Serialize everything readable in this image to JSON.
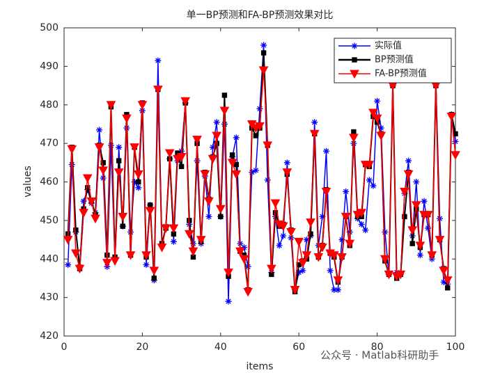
{
  "chart_data": {
    "type": "line",
    "title": "单一BP预测和FA-BP预测效果对比",
    "xlabel": "items",
    "ylabel": "values",
    "watermark": "公众号 · Matlab科研助手",
    "x": [
      1,
      2,
      3,
      4,
      5,
      6,
      7,
      8,
      9,
      10,
      11,
      12,
      13,
      14,
      15,
      16,
      17,
      18,
      19,
      20,
      21,
      22,
      23,
      24,
      25,
      26,
      27,
      28,
      29,
      30,
      31,
      32,
      33,
      34,
      35,
      36,
      37,
      38,
      39,
      40,
      41,
      42,
      43,
      44,
      45,
      46,
      47,
      48,
      49,
      50,
      51,
      52,
      53,
      54,
      55,
      56,
      57,
      58,
      59,
      60,
      61,
      62,
      63,
      64,
      65,
      66,
      67,
      68,
      69,
      70,
      71,
      72,
      73,
      74,
      75,
      76,
      77,
      78,
      79,
      80,
      81,
      82,
      83,
      84,
      85,
      86,
      87,
      88,
      89,
      90,
      91,
      92,
      93,
      94,
      95,
      96,
      97,
      98,
      99,
      100
    ],
    "series": [
      {
        "name": "实际值",
        "color": "#0000ff",
        "marker": "star",
        "values": [
          438.5,
          464.5,
          447,
          438,
          455,
          458,
          454.5,
          452,
          473.5,
          461,
          438,
          469.5,
          440,
          469,
          448.5,
          474,
          447,
          460,
          458.5,
          478.5,
          438.5,
          454,
          434.5,
          491.5,
          443.5,
          448.5,
          466,
          444.5,
          465.5,
          468,
          480.5,
          449,
          444,
          465.5,
          444,
          461.5,
          451,
          469,
          475.5,
          451,
          475,
          429,
          466.5,
          471.5,
          444,
          443,
          438,
          462.5,
          463,
          479,
          495.5,
          460.5,
          436.5,
          451,
          443.5,
          446,
          465,
          445.5,
          432,
          436.5,
          437,
          445,
          446,
          475.5,
          443.5,
          451,
          468,
          437,
          432,
          432,
          445,
          457.5,
          447,
          470,
          450.5,
          449,
          447.5,
          460.5,
          459,
          481,
          474,
          447,
          436,
          485,
          436.5,
          436,
          457,
          465.5,
          446,
          460,
          441,
          455,
          448,
          440,
          486,
          450.5,
          434,
          433.5,
          477.5,
          470.5
        ]
      },
      {
        "name": "BP预测值",
        "color": "#000000",
        "marker": "square",
        "values": [
          446.5,
          469,
          447.5,
          437.5,
          453,
          458.5,
          455,
          451.5,
          469.5,
          465,
          441,
          479.5,
          440.5,
          465.5,
          448.5,
          477.5,
          441,
          469,
          460,
          480.5,
          440.5,
          454,
          435,
          484,
          444,
          448,
          466,
          446.5,
          467.5,
          464,
          480.5,
          450,
          440.5,
          470,
          444.5,
          462.5,
          455.5,
          466.5,
          470,
          451,
          482.5,
          435.5,
          467,
          464.5,
          442,
          441,
          432,
          474,
          472,
          474,
          493.5,
          469.5,
          436,
          452,
          448.5,
          449,
          462,
          447.5,
          431.5,
          438.5,
          439.5,
          440,
          446.5,
          472.5,
          440.5,
          443.5,
          458,
          441.5,
          440.5,
          434,
          440.5,
          451,
          443.5,
          473,
          451,
          451,
          464.5,
          464,
          477,
          475.5,
          472.5,
          439.5,
          436,
          485,
          435,
          436,
          451,
          462.5,
          444,
          453,
          443,
          451.5,
          451.5,
          441,
          485,
          445,
          437.5,
          432.5,
          477.5,
          472.5
        ]
      },
      {
        "name": "FA-BP预测值",
        "color": "#ff0000",
        "marker": "triangle",
        "values": [
          445,
          468.5,
          441.5,
          437.5,
          452,
          461,
          455,
          450.5,
          469,
          463,
          439,
          480,
          439.5,
          462.5,
          451,
          476.5,
          441,
          469,
          462,
          480,
          441,
          452.5,
          437,
          484,
          443,
          448,
          467.5,
          448,
          466,
          466.5,
          481,
          446.5,
          442,
          471,
          445,
          462,
          455,
          466,
          472,
          453,
          478.5,
          436.5,
          465,
          462,
          442,
          440,
          431.5,
          475,
          474,
          474.5,
          489,
          469.5,
          437.5,
          454.5,
          449,
          448.5,
          462.5,
          447,
          432,
          444.5,
          439,
          441,
          449.5,
          472.5,
          440.5,
          443,
          457.5,
          441.5,
          441,
          434.5,
          440.5,
          451,
          444,
          471.5,
          451.5,
          452,
          464.5,
          464.5,
          478,
          476.5,
          472,
          440,
          436,
          485,
          435.5,
          436,
          457.5,
          462,
          447.5,
          454,
          443.5,
          451.5,
          451.5,
          441,
          485,
          445,
          437,
          434.5,
          477,
          467
        ]
      }
    ],
    "xlim": [
      0,
      100
    ],
    "ylim": [
      420,
      500
    ],
    "xticks": [
      0,
      20,
      40,
      60,
      80,
      100
    ],
    "yticks": [
      420,
      430,
      440,
      450,
      460,
      470,
      480,
      490,
      500
    ],
    "grid": false,
    "legend": "northeast"
  }
}
